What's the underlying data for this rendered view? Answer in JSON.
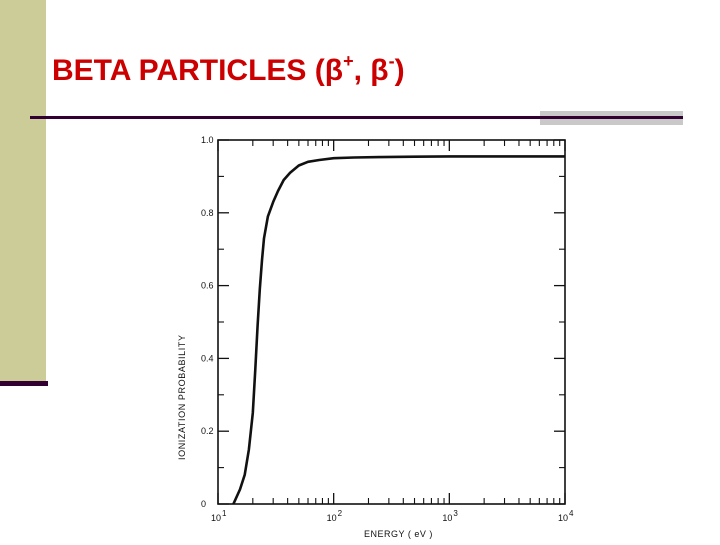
{
  "slide": {
    "title_main": "BETA PARTICLES (β",
    "title_sup1": "+",
    "title_sep": ", β",
    "title_sup2": "-",
    "title_end": ")"
  },
  "colors": {
    "title": "#cc0000",
    "band": "#cccc99",
    "rule": "#330033",
    "accent": "#c9c9c9"
  },
  "chart_data": {
    "type": "line",
    "title": "",
    "xlabel": "ENERGY ( eV )",
    "ylabel": "IONIZATION PROBABILITY",
    "x_scale": "log",
    "xlim": [
      10,
      10000
    ],
    "ylim": [
      0,
      1.0
    ],
    "y_ticks": [
      {
        "value": 0,
        "label": "0"
      },
      {
        "value": 0.2,
        "label": "0.2"
      },
      {
        "value": 0.4,
        "label": "0.4"
      },
      {
        "value": 0.6,
        "label": "0.6"
      },
      {
        "value": 0.8,
        "label": "0.8"
      },
      {
        "value": 1.0,
        "label": "1.0"
      }
    ],
    "x_ticks": [
      {
        "value": 10,
        "base": "10",
        "exp": "1"
      },
      {
        "value": 100,
        "base": "10",
        "exp": "2"
      },
      {
        "value": 1000,
        "base": "10",
        "exp": "3"
      },
      {
        "value": 10000,
        "base": "10",
        "exp": "4"
      }
    ],
    "series": [
      {
        "x": [
          13.6,
          15.5,
          17,
          18.5,
          20,
          21,
          22,
          23,
          24,
          25,
          27,
          30,
          33,
          37,
          42,
          50,
          60,
          75,
          100,
          150,
          250,
          500,
          1000,
          3000,
          10000
        ],
        "y": [
          0,
          0.04,
          0.08,
          0.15,
          0.25,
          0.37,
          0.49,
          0.59,
          0.67,
          0.73,
          0.79,
          0.83,
          0.86,
          0.89,
          0.91,
          0.93,
          0.94,
          0.945,
          0.95,
          0.952,
          0.953,
          0.954,
          0.955,
          0.955,
          0.955
        ]
      }
    ]
  }
}
